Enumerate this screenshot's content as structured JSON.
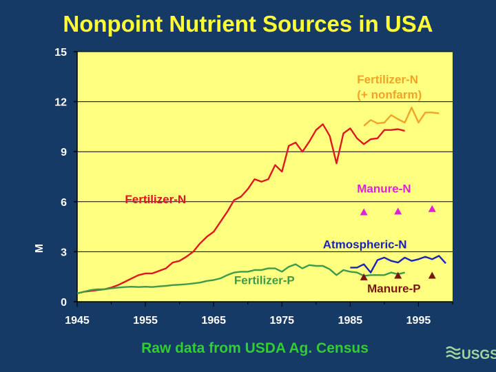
{
  "title": "Nonpoint Nutrient Sources in USA",
  "source_note": "Raw data from USDA Ag. Census",
  "logo_text": "USGS",
  "colors": {
    "background": "#163a66",
    "plot_area": "#ffff80",
    "title": "#ffff33",
    "source_note": "#2fcf2f"
  },
  "chart_data": {
    "type": "line",
    "title": "Nonpoint Nutrient Sources in USA",
    "xlabel": "",
    "ylabel": "M",
    "xlim": [
      1945,
      2000
    ],
    "ylim": [
      0,
      15
    ],
    "x_ticks": [
      1945,
      1955,
      1965,
      1975,
      1985,
      1995
    ],
    "y_ticks": [
      0,
      3,
      6,
      9,
      12,
      15
    ],
    "grid": "horizontal",
    "series": [
      {
        "name": "Fertilizer-N",
        "color": "#e0161e",
        "type": "line",
        "x": [
          1945,
          1946,
          1947,
          1948,
          1949,
          1950,
          1951,
          1952,
          1953,
          1954,
          1955,
          1956,
          1957,
          1958,
          1959,
          1960,
          1961,
          1962,
          1963,
          1964,
          1965,
          1966,
          1967,
          1968,
          1969,
          1970,
          1971,
          1972,
          1973,
          1974,
          1975,
          1976,
          1977,
          1978,
          1979,
          1980,
          1981,
          1982,
          1983,
          1984,
          1985,
          1986,
          1987,
          1988,
          1989,
          1990,
          1991,
          1992,
          1993
        ],
        "y": [
          0.5,
          0.6,
          0.65,
          0.7,
          0.75,
          0.85,
          1.0,
          1.2,
          1.4,
          1.6,
          1.7,
          1.7,
          1.85,
          2.0,
          2.35,
          2.45,
          2.7,
          3.0,
          3.5,
          3.9,
          4.2,
          4.8,
          5.4,
          6.1,
          6.3,
          6.75,
          7.35,
          7.2,
          7.35,
          8.2,
          7.8,
          9.35,
          9.55,
          9.0,
          9.6,
          10.3,
          10.65,
          9.95,
          8.3,
          10.1,
          10.4,
          9.8,
          9.45,
          9.75,
          9.8,
          10.3,
          10.3,
          10.35,
          10.25
        ]
      },
      {
        "name": "Fertilizer-N (+ nonfarm)",
        "color": "#f2a227",
        "type": "line",
        "x": [
          1987,
          1988,
          1989,
          1990,
          1991,
          1992,
          1993,
          1994,
          1995,
          1996,
          1997,
          1998
        ],
        "y": [
          10.55,
          10.9,
          10.7,
          10.75,
          11.2,
          10.95,
          10.75,
          11.65,
          10.75,
          11.35,
          11.35,
          11.3
        ]
      },
      {
        "name": "Fertilizer-P",
        "color": "#3d9a4a",
        "type": "line",
        "x": [
          1945,
          1946,
          1947,
          1948,
          1949,
          1950,
          1951,
          1952,
          1953,
          1954,
          1955,
          1956,
          1957,
          1958,
          1959,
          1960,
          1961,
          1962,
          1963,
          1964,
          1965,
          1966,
          1967,
          1968,
          1969,
          1970,
          1971,
          1972,
          1973,
          1974,
          1975,
          1976,
          1977,
          1978,
          1979,
          1980,
          1981,
          1982,
          1983,
          1984,
          1985,
          1986,
          1987,
          1988,
          1989,
          1990,
          1991,
          1992,
          1993
        ],
        "y": [
          0.5,
          0.6,
          0.7,
          0.75,
          0.75,
          0.8,
          0.85,
          0.88,
          0.9,
          0.88,
          0.9,
          0.88,
          0.92,
          0.95,
          1.0,
          1.02,
          1.05,
          1.1,
          1.15,
          1.25,
          1.3,
          1.4,
          1.6,
          1.75,
          1.8,
          1.8,
          1.9,
          1.9,
          2.0,
          2.0,
          1.8,
          2.1,
          2.25,
          2.0,
          2.2,
          2.15,
          2.15,
          1.95,
          1.6,
          1.9,
          1.8,
          1.75,
          1.55,
          1.6,
          1.6,
          1.6,
          1.75,
          1.65,
          1.75
        ]
      },
      {
        "name": "Atmospheric-N",
        "color": "#1a22b8",
        "type": "line",
        "x": [
          1985,
          1986,
          1987,
          1988,
          1989,
          1990,
          1991,
          1992,
          1993,
          1994,
          1995,
          1996,
          1997,
          1998,
          1999
        ],
        "y": [
          2.05,
          2.05,
          2.25,
          1.75,
          2.5,
          2.65,
          2.45,
          2.35,
          2.65,
          2.45,
          2.55,
          2.7,
          2.55,
          2.75,
          2.3
        ]
      },
      {
        "name": "Manure-N",
        "color": "#e020d8",
        "type": "marker",
        "x": [
          1987,
          1992,
          1997
        ],
        "y": [
          5.35,
          5.4,
          5.55
        ]
      },
      {
        "name": "Manure-P",
        "color": "#7a1410",
        "type": "marker",
        "x": [
          1987,
          1992,
          1997
        ],
        "y": [
          1.45,
          1.55,
          1.55
        ]
      }
    ],
    "labels": [
      {
        "text": "Fertilizer-N",
        "series": "Fertilizer-N",
        "color": "#e0161e"
      },
      {
        "text": "Fertilizer-N",
        "series": "Fertilizer-N (+ nonfarm)",
        "color": "#f2a227"
      },
      {
        "text": "(+ nonfarm)",
        "series": "Fertilizer-N (+ nonfarm)",
        "color": "#f2a227"
      },
      {
        "text": "Fertilizer-P",
        "series": "Fertilizer-P",
        "color": "#3d9a4a"
      },
      {
        "text": "Atmospheric-N",
        "series": "Atmospheric-N",
        "color": "#1a22b8"
      },
      {
        "text": "Manure-N",
        "series": "Manure-N",
        "color": "#e020d8"
      },
      {
        "text": "Manure-P",
        "series": "Manure-P",
        "color": "#7a1410"
      }
    ]
  }
}
